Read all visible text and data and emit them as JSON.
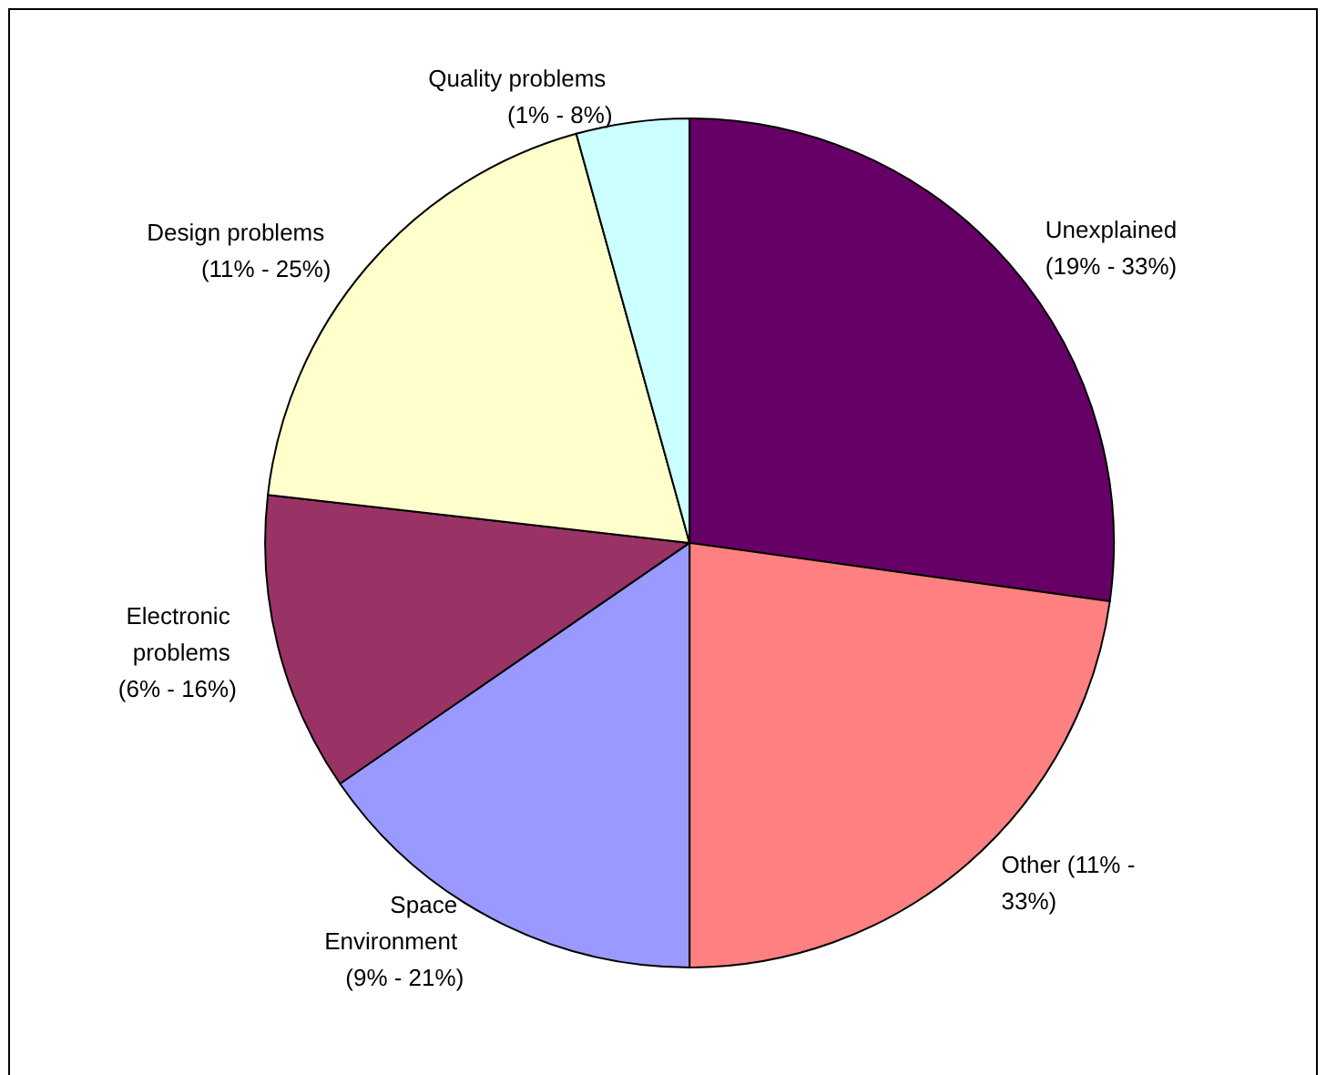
{
  "chart_data": {
    "type": "pie",
    "categories": [
      "Unexplained (19% - 33%)",
      "Other (11% - 33%)",
      "Space Environment (9% - 21%)",
      "Electronic problems (6% - 16%)",
      "Design problems (11% - 25%)",
      "Quality problems (1% - 8%)"
    ],
    "values": [
      27.2,
      22.8,
      15.4,
      11.4,
      18.9,
      4.3
    ],
    "colors": [
      "#660066",
      "#ff8080",
      "#9999ff",
      "#993366",
      "#ffffcc",
      "#ccffff"
    ],
    "legend": false
  }
}
